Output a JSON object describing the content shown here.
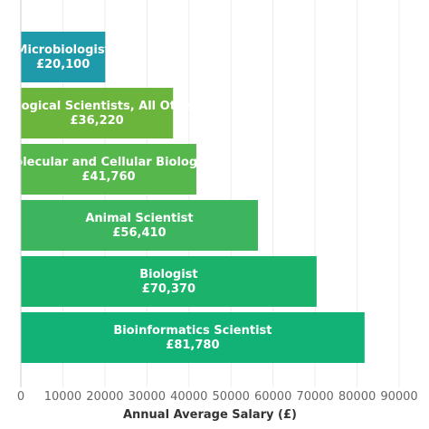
{
  "chart_data": {
    "type": "bar",
    "orientation": "horizontal",
    "categories": [
      "Microbiologist",
      "Biological Scientists, All Other",
      "Molecular and Cellular Biologist",
      "Animal Scientist",
      "Biologist",
      "Bioinformatics Scientist"
    ],
    "values": [
      20100,
      36220,
      41760,
      56410,
      70370,
      81780
    ],
    "value_labels": [
      "£20,100",
      "£36,220",
      "£41,760",
      "£56,410",
      "£70,370",
      "£81,780"
    ],
    "colors": [
      "#1f9aab",
      "#6cb53c",
      "#56b74c",
      "#3db55e",
      "#1bb26b",
      "#12b277"
    ],
    "xlabel": "Annual Average Salary (£)",
    "ylabel": "",
    "xlim": [
      0,
      90000
    ],
    "xticks": [
      0,
      10000,
      20000,
      30000,
      40000,
      50000,
      60000,
      70000,
      80000,
      90000
    ],
    "grid": true
  }
}
